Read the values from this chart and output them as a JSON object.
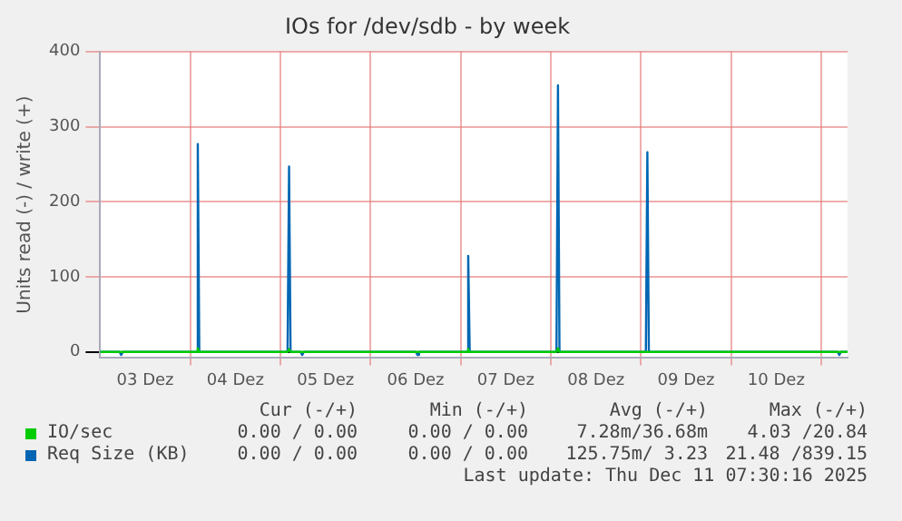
{
  "chart_data": {
    "type": "line",
    "title": "IOs for /dev/sdb - by week",
    "ylabel": "Units read (-) / write (+)",
    "xlim": [
      "2025-12-03T00:00",
      "2025-12-11T07:00"
    ],
    "xticks": [
      {
        "value": "2025-12-03T12:00",
        "label": "03 Dez"
      },
      {
        "value": "2025-12-04T00:00",
        "label": null
      },
      {
        "value": "2025-12-04T12:00",
        "label": "04 Dez"
      },
      {
        "value": "2025-12-05T00:00",
        "label": null
      },
      {
        "value": "2025-12-05T12:00",
        "label": "05 Dez"
      },
      {
        "value": "2025-12-06T00:00",
        "label": null
      },
      {
        "value": "2025-12-06T12:00",
        "label": "06 Dez"
      },
      {
        "value": "2025-12-07T00:00",
        "label": null
      },
      {
        "value": "2025-12-07T12:00",
        "label": "07 Dez"
      },
      {
        "value": "2025-12-08T00:00",
        "label": null
      },
      {
        "value": "2025-12-08T12:00",
        "label": "08 Dez"
      },
      {
        "value": "2025-12-09T00:00",
        "label": null
      },
      {
        "value": "2025-12-09T12:00",
        "label": "09 Dez"
      },
      {
        "value": "2025-12-10T00:00",
        "label": null
      },
      {
        "value": "2025-12-10T12:00",
        "label": "10 Dez"
      },
      {
        "value": "2025-12-11T00:00",
        "label": null
      }
    ],
    "ylim": [
      -8,
      400
    ],
    "yticks": [
      0,
      100,
      200,
      300,
      400
    ],
    "grid": true,
    "legend": "bottom",
    "marker": "none",
    "series": [
      {
        "name": "IO/sec",
        "color": "#00cc00",
        "x": [
          "2025-12-03T00:00",
          "2025-12-04T01:36",
          "2025-12-04T02:00",
          "2025-12-04T02:24",
          "2025-12-05T01:54",
          "2025-12-05T02:18",
          "2025-12-05T02:42",
          "2025-12-07T01:36",
          "2025-12-07T02:00",
          "2025-12-07T02:24",
          "2025-12-08T01:30",
          "2025-12-08T01:54",
          "2025-12-08T02:18",
          "2025-12-11T07:00"
        ],
        "values": [
          0,
          0,
          5,
          0,
          0,
          4,
          0,
          0,
          4,
          0,
          0,
          5,
          0,
          0
        ]
      },
      {
        "name": "Req Size (KB)",
        "color": "#0066b3",
        "x": [
          "2025-12-03T00:00",
          "2025-12-03T05:12",
          "2025-12-03T05:36",
          "2025-12-03T06:00",
          "2025-12-04T01:36",
          "2025-12-04T02:00",
          "2025-12-04T02:24",
          "2025-12-05T01:54",
          "2025-12-05T02:18",
          "2025-12-05T02:42",
          "2025-12-05T05:24",
          "2025-12-05T05:48",
          "2025-12-05T06:12",
          "2025-12-06T12:06",
          "2025-12-06T12:30",
          "2025-12-06T12:54",
          "2025-12-07T01:36",
          "2025-12-07T02:00",
          "2025-12-07T02:24",
          "2025-12-08T01:30",
          "2025-12-08T01:54",
          "2025-12-08T02:18",
          "2025-12-09T01:18",
          "2025-12-09T01:42",
          "2025-12-09T02:06",
          "2025-12-11T04:24",
          "2025-12-11T04:48",
          "2025-12-11T05:12",
          "2025-12-11T07:00"
        ],
        "values": [
          0,
          0,
          -4,
          0,
          0,
          277,
          0,
          0,
          247,
          0,
          0,
          -4,
          0,
          0,
          -4,
          0,
          0,
          128,
          0,
          0,
          355,
          0,
          0,
          266,
          0,
          0,
          -4,
          0,
          0
        ]
      }
    ],
    "annotations": [
      "Cur (-/+)",
      "Min (-/+)",
      "Avg (-/+)",
      "Max (-/+)",
      "0.00 / 0.00",
      "0.00 / 0.00",
      "7.28m/36.68m",
      "4.03 /20.84",
      "0.00 / 0.00",
      "0.00 / 0.00",
      "125.75m/ 3.23",
      "21.48 /839.15",
      "Last update: Thu Dec 11 07:30:16 2025"
    ]
  }
}
